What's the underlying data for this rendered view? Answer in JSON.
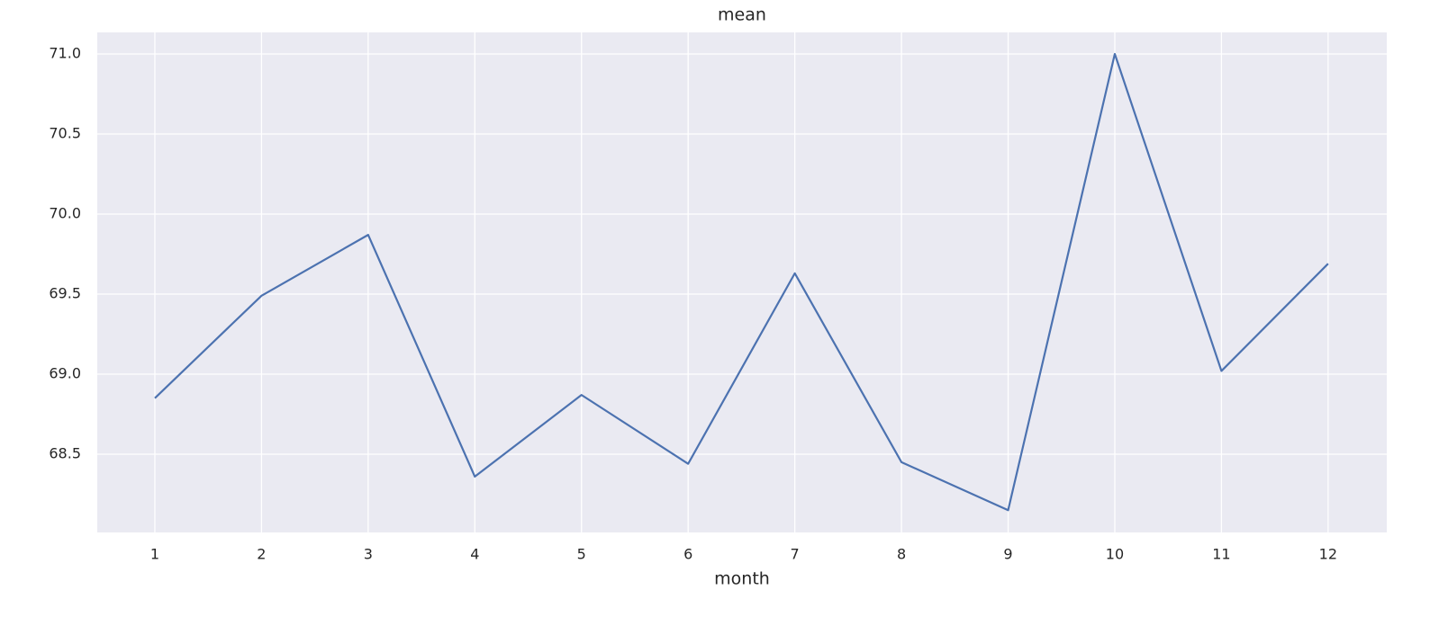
{
  "chart_data": {
    "type": "line",
    "title": "mean",
    "x_label": "month",
    "x": [
      1,
      2,
      3,
      4,
      5,
      6,
      7,
      8,
      9,
      10,
      11,
      12
    ],
    "y": [
      68.85,
      69.49,
      69.87,
      68.36,
      68.87,
      68.44,
      69.63,
      68.45,
      68.15,
      71.0,
      69.02,
      69.69
    ],
    "color": "#4c72b0",
    "xlim": [
      0.46,
      12.55
    ],
    "xticks": [
      1,
      2,
      3,
      4,
      5,
      6,
      7,
      8,
      9,
      10,
      11,
      12
    ],
    "ylim": [
      68.011,
      71.135
    ],
    "yticks": [
      {
        "value": 68.5,
        "label": "68.5"
      },
      {
        "value": 69.0,
        "label": "69.0"
      },
      {
        "value": 69.5,
        "label": "69.5"
      },
      {
        "value": 70.0,
        "label": "70.0"
      },
      {
        "value": 70.5,
        "label": "70.5"
      },
      {
        "value": 71.0,
        "label": "71.0"
      }
    ],
    "grid": true
  }
}
